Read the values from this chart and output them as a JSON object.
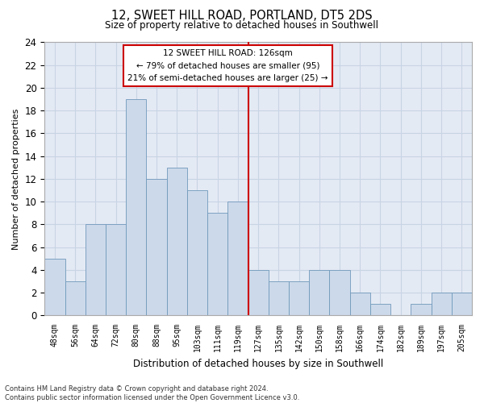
{
  "title1": "12, SWEET HILL ROAD, PORTLAND, DT5 2DS",
  "title2": "Size of property relative to detached houses in Southwell",
  "xlabel": "Distribution of detached houses by size in Southwell",
  "ylabel": "Number of detached properties",
  "categories": [
    "48sqm",
    "56sqm",
    "64sqm",
    "72sqm",
    "80sqm",
    "88sqm",
    "95sqm",
    "103sqm",
    "111sqm",
    "119sqm",
    "127sqm",
    "135sqm",
    "142sqm",
    "150sqm",
    "158sqm",
    "166sqm",
    "174sqm",
    "182sqm",
    "189sqm",
    "197sqm",
    "205sqm"
  ],
  "values": [
    5,
    3,
    8,
    8,
    19,
    12,
    13,
    11,
    9,
    10,
    4,
    3,
    3,
    4,
    4,
    2,
    1,
    0,
    1,
    2,
    2
  ],
  "bar_color": "#ccd9ea",
  "bar_edge_color": "#7099bb",
  "bar_width": 1.0,
  "ylim": [
    0,
    24
  ],
  "yticks": [
    0,
    2,
    4,
    6,
    8,
    10,
    12,
    14,
    16,
    18,
    20,
    22,
    24
  ],
  "vline_color": "#cc0000",
  "annotation_title": "12 SWEET HILL ROAD: 126sqm",
  "annotation_line1": "← 79% of detached houses are smaller (95)",
  "annotation_line2": "21% of semi-detached houses are larger (25) →",
  "annotation_box_color": "#cc0000",
  "annotation_box_fill": "#ffffff",
  "grid_color": "#c8d4e4",
  "background_color": "#e4eaf4",
  "footer_line1": "Contains HM Land Registry data © Crown copyright and database right 2024.",
  "footer_line2": "Contains public sector information licensed under the Open Government Licence v3.0."
}
